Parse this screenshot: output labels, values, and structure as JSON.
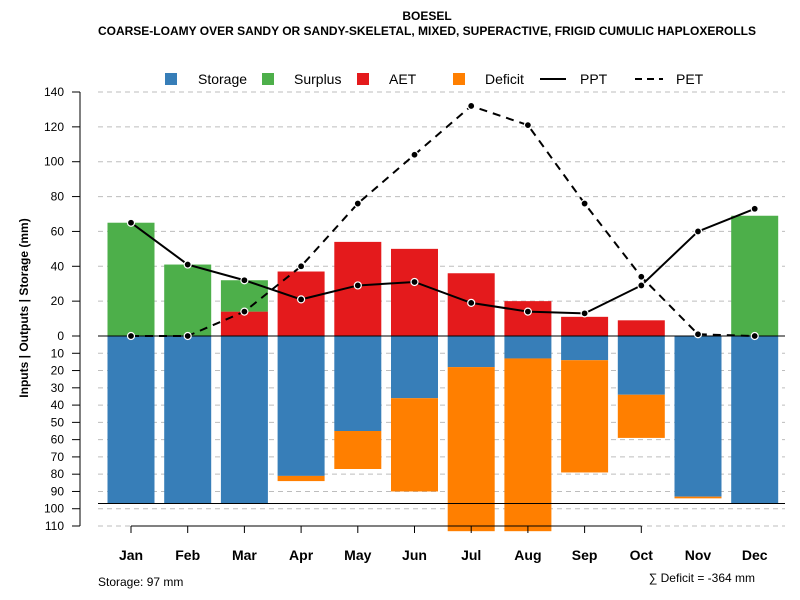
{
  "chart_data": {
    "type": "bar",
    "title": "BOESEL",
    "subtitle": "COARSE-LOAMY OVER SANDY OR SANDY-SKELETAL, MIXED, SUPERACTIVE, FRIGID CUMULIC HAPLOXEROLLS",
    "ylabel": "Inputs | Outputs | Storage    (mm)",
    "categories": [
      "Jan",
      "Feb",
      "Mar",
      "Apr",
      "May",
      "Jun",
      "Jul",
      "Aug",
      "Sep",
      "Oct",
      "Nov",
      "Dec"
    ],
    "ylim": [
      -110,
      140
    ],
    "yticks_labels": [
      "140",
      "120",
      "100",
      "80",
      "60",
      "40",
      "20",
      "0",
      "10",
      "20",
      "30",
      "40",
      "50",
      "60",
      "70",
      "80",
      "90",
      "100",
      "110"
    ],
    "yticks_values": [
      140,
      120,
      100,
      80,
      60,
      40,
      20,
      0,
      -10,
      -20,
      -30,
      -40,
      -50,
      -60,
      -70,
      -80,
      -90,
      -100,
      -110
    ],
    "storage_capacity": 97,
    "legend": {
      "storage": "Storage",
      "surplus": "Surplus",
      "aet": "AET",
      "deficit": "Deficit",
      "ppt": "PPT",
      "pet": "PET"
    },
    "series": [
      {
        "name": "Storage",
        "color": "#377eb8",
        "values": [
          97,
          97,
          97,
          81,
          55,
          36,
          18,
          13,
          14,
          34,
          93,
          97
        ]
      },
      {
        "name": "Deficit",
        "color": "#ff7f00",
        "values": [
          0,
          0,
          0,
          3,
          22,
          54,
          95,
          100,
          65,
          25,
          1,
          0
        ]
      },
      {
        "name": "AET",
        "color": "#e41a1c",
        "values": [
          0,
          0,
          14,
          37,
          54,
          50,
          36,
          20,
          11,
          9,
          0,
          0
        ]
      },
      {
        "name": "Surplus",
        "color": "#4daf4a",
        "values": [
          65,
          41,
          18,
          0,
          0,
          0,
          0,
          0,
          0,
          0,
          0,
          69
        ]
      },
      {
        "name": "PPT",
        "color": "#000000",
        "values": [
          65,
          41,
          32,
          21,
          29,
          31,
          19,
          14,
          13,
          29,
          60,
          73
        ]
      },
      {
        "name": "PET",
        "color": "#000000",
        "values": [
          0,
          0,
          14,
          40,
          76,
          104,
          132,
          121,
          76,
          34,
          1,
          0
        ]
      }
    ],
    "footer_storage": "Storage: 97 mm",
    "footer_deficit": "∑ Deficit = -364 mm"
  }
}
